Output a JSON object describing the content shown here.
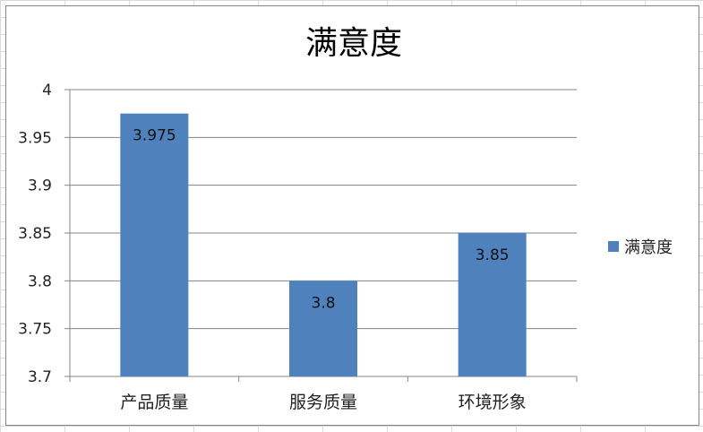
{
  "chart_data": {
    "type": "bar",
    "title": "满意度",
    "categories": [
      "产品质量",
      "服务质量",
      "环境形象"
    ],
    "series": [
      {
        "name": "满意度",
        "values": [
          3.975,
          3.8,
          3.85
        ],
        "color": "#4F81BD"
      }
    ],
    "data_labels": [
      "3.975",
      "3.8",
      "3.85"
    ],
    "ylim": [
      3.7,
      4
    ],
    "yticks": [
      3.7,
      3.75,
      3.8,
      3.85,
      3.9,
      3.95,
      4
    ],
    "ytick_labels": [
      "3.7",
      "3.75",
      "3.8",
      "3.85",
      "3.9",
      "3.95",
      "4"
    ],
    "grid": true,
    "legend_position": "right"
  }
}
